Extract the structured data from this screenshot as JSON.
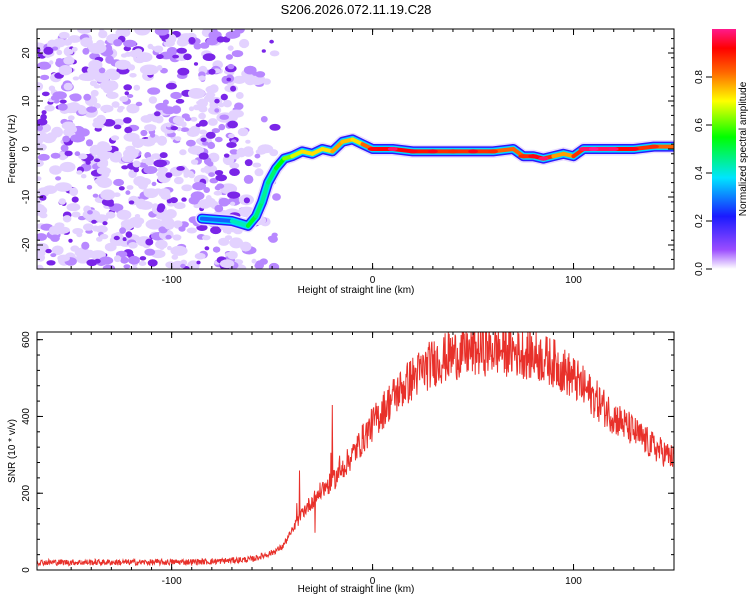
{
  "title": "S206.2026.072.11.19.C28",
  "chart_data": [
    {
      "type": "heatmap",
      "name": "spectrogram",
      "xlabel": "Height of straight line (km)",
      "ylabel": "Frequency (Hz)",
      "xlim": [
        -167,
        150
      ],
      "ylim": [
        -25,
        25
      ],
      "xticks": [
        -100,
        0,
        100
      ],
      "yticks": [
        -20,
        -10,
        0,
        10,
        20
      ],
      "colorbar": {
        "label": "Normalized spectral amplitude",
        "range": [
          0,
          1
        ],
        "ticks": [
          "0.0",
          "0.2",
          "0.4",
          "0.6",
          "0.8"
        ],
        "colors": [
          "#ffffff",
          "#9b4dff",
          "#1a1aff",
          "#00e5ff",
          "#00ff00",
          "#ffff00",
          "#ff6600",
          "#ff0000",
          "#ff1a8c"
        ]
      },
      "ridge": {
        "description": "frequency of peak spectral amplitude vs height",
        "x": [
          -85,
          -70,
          -62,
          -58,
          -55,
          -52,
          -48,
          -44,
          -40,
          -35,
          -30,
          -25,
          -20,
          -15,
          -10,
          -5,
          0,
          10,
          20,
          30,
          40,
          50,
          60,
          70,
          75,
          80,
          85,
          90,
          95,
          100,
          105,
          110,
          120,
          130,
          140,
          150
        ],
        "y": [
          -14.5,
          -15,
          -16,
          -14,
          -11,
          -7,
          -4,
          -2,
          -1.5,
          -0.5,
          -1,
          0,
          -0.5,
          1.5,
          2,
          1,
          0,
          0,
          -0.5,
          -0.5,
          -0.5,
          -0.5,
          -0.5,
          0,
          -1.5,
          -1.5,
          -2,
          -1.5,
          -1,
          -1.5,
          0,
          0,
          0,
          0,
          0.5,
          0.5
        ],
        "amplitude": [
          0.25,
          0.3,
          0.55,
          0.5,
          0.45,
          0.45,
          0.5,
          0.6,
          0.65,
          0.7,
          0.75,
          0.7,
          0.75,
          0.8,
          0.7,
          0.75,
          0.9,
          0.95,
          0.9,
          0.9,
          0.85,
          0.9,
          0.85,
          0.8,
          0.85,
          0.9,
          0.95,
          0.8,
          0.75,
          0.8,
          0.95,
          1.0,
          0.95,
          0.9,
          0.85,
          0.8
        ]
      },
      "noise_region_x": [
        -167,
        -55
      ]
    },
    {
      "type": "line",
      "name": "snr",
      "xlabel": "Height of straight line (km)",
      "ylabel": "SNR (10 * v/v)",
      "xlim": [
        -167,
        150
      ],
      "ylim": [
        0,
        620
      ],
      "xticks": [
        -100,
        0,
        100
      ],
      "yticks": [
        0,
        200,
        400,
        600
      ],
      "color": "#e8302a",
      "envelope": {
        "x": [
          -167,
          -140,
          -110,
          -80,
          -60,
          -50,
          -45,
          -40,
          -35,
          -30,
          -25,
          -20,
          -10,
          0,
          10,
          20,
          30,
          40,
          50,
          60,
          70,
          80,
          90,
          100,
          110,
          120,
          130,
          140,
          150
        ],
        "y": [
          20,
          20,
          20,
          22,
          28,
          45,
          60,
          100,
          150,
          180,
          210,
          230,
          300,
          380,
          450,
          500,
          540,
          560,
          570,
          575,
          570,
          560,
          540,
          500,
          450,
          400,
          360,
          320,
          290
        ]
      }
    }
  ]
}
